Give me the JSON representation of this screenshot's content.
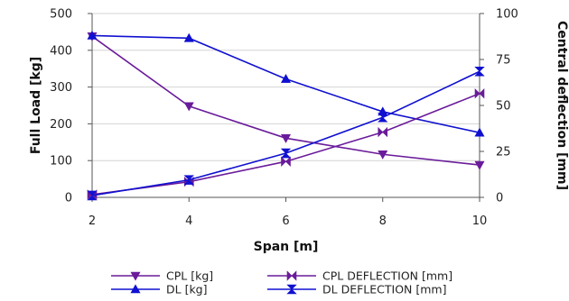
{
  "chart_data": {
    "type": "line",
    "x": [
      2,
      4,
      6,
      8,
      10
    ],
    "xlabel": "Span [m]",
    "ylabel": "Full Load [kg]",
    "y2label": "Central deflection [mm]",
    "xlim": [
      2,
      10
    ],
    "ylim": [
      0,
      500
    ],
    "y2lim": [
      0,
      100
    ],
    "xticks": [
      "2",
      "4",
      "6",
      "8",
      "10"
    ],
    "yticks": [
      "0",
      "100",
      "200",
      "300",
      "400",
      "500"
    ],
    "y2ticks": [
      "0",
      "25",
      "50",
      "75",
      "100"
    ],
    "grid": true,
    "legend_position": "bottom",
    "series": [
      {
        "name": "CPL [kg]",
        "axis": "left",
        "color": "#6a1b9a",
        "marker": "triangle-down",
        "values": [
          438,
          248,
          161,
          117,
          88
        ]
      },
      {
        "name": "DL [kg]",
        "axis": "left",
        "color": "#1010d0",
        "marker": "triangle-up",
        "values": [
          440,
          433,
          322,
          233,
          176
        ]
      },
      {
        "name": "CPL DEFLECTION [mm]",
        "axis": "right",
        "color": "#6a1b9a",
        "marker": "bowtie",
        "values": [
          1.5,
          8.5,
          19.5,
          35.5,
          56.5
        ]
      },
      {
        "name": "DL DEFLECTION [mm]",
        "axis": "right",
        "color": "#1010d0",
        "marker": "hourglass",
        "values": [
          1,
          9.5,
          24,
          43.5,
          68.5
        ]
      }
    ]
  }
}
